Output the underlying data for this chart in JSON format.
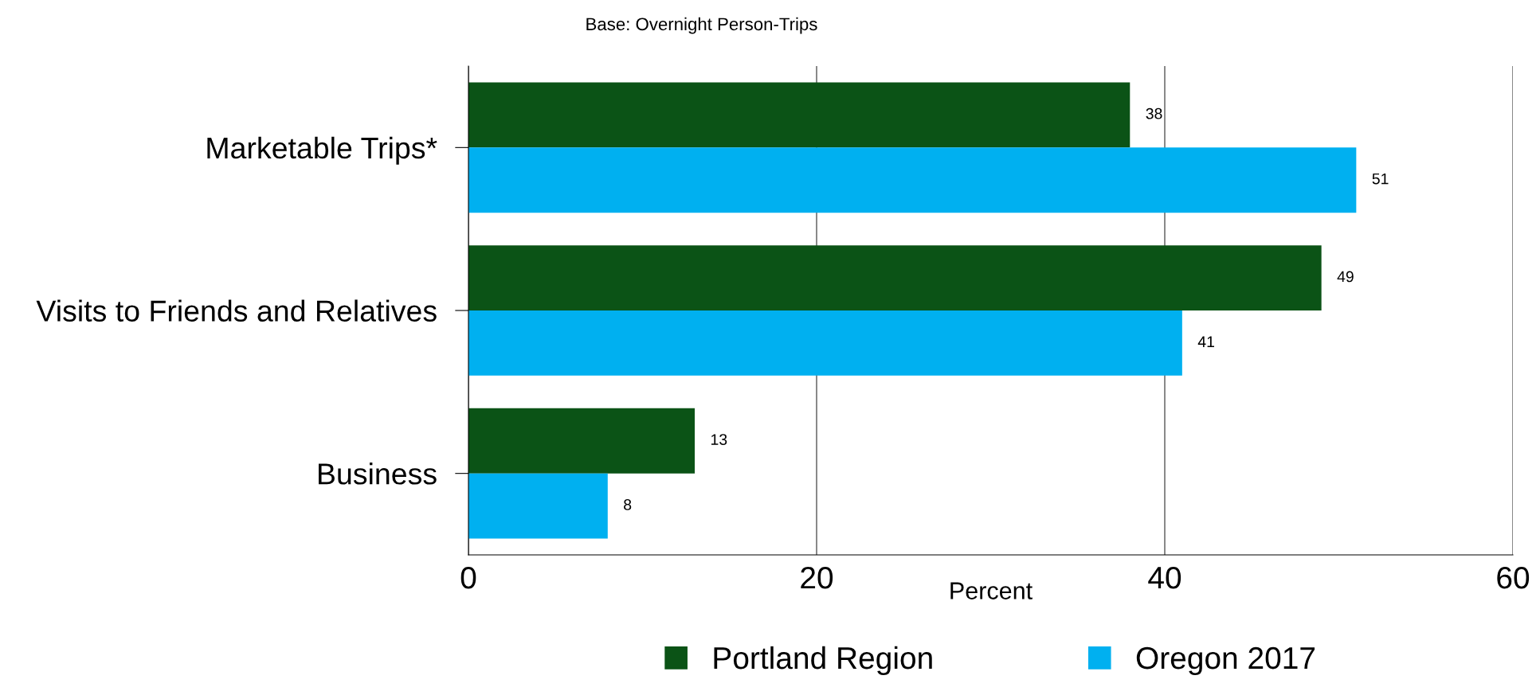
{
  "chart_data": {
    "type": "bar",
    "orientation": "horizontal",
    "title": "Base: Overnight Person-Trips",
    "xlabel": "Percent",
    "categories": [
      "Marketable Trips*",
      "Visits to Friends and Relatives",
      "Business"
    ],
    "series": [
      {
        "name": "Portland Region",
        "color": "#0b5316",
        "values": [
          38,
          49,
          13
        ]
      },
      {
        "name": "Oregon 2017",
        "color": "#00b0f0",
        "values": [
          51,
          41,
          8
        ]
      }
    ],
    "xlim": [
      0,
      60
    ],
    "xticks": [
      0,
      20,
      40,
      60
    ],
    "grid": "x",
    "legend": "bottom",
    "data_labels": true
  }
}
